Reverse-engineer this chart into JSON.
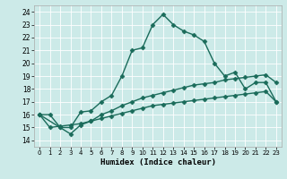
{
  "title": "",
  "xlabel": "Humidex (Indice chaleur)",
  "background_color": "#cceae8",
  "grid_color": "#ffffff",
  "line_color": "#1a6b5a",
  "xlim": [
    -0.5,
    23.5
  ],
  "ylim": [
    13.5,
    24.5
  ],
  "yticks": [
    14,
    15,
    16,
    17,
    18,
    19,
    20,
    21,
    22,
    23,
    24
  ],
  "xticks": [
    0,
    1,
    2,
    3,
    4,
    5,
    6,
    7,
    8,
    9,
    10,
    11,
    12,
    13,
    14,
    15,
    16,
    17,
    18,
    19,
    20,
    21,
    22,
    23
  ],
  "series": [
    {
      "x": [
        0,
        1,
        2,
        3,
        4,
        5,
        6,
        7,
        8,
        9,
        10,
        11,
        12,
        13,
        14,
        15,
        16,
        17,
        18,
        19,
        20,
        21,
        22,
        23
      ],
      "y": [
        16.0,
        16.0,
        15.0,
        15.0,
        16.2,
        16.3,
        17.0,
        17.5,
        19.0,
        21.0,
        21.2,
        23.0,
        23.8,
        23.0,
        22.5,
        22.2,
        21.7,
        20.0,
        19.0,
        19.3,
        18.0,
        18.5,
        18.5,
        17.0
      ],
      "marker": "D",
      "markersize": 2.5,
      "linewidth": 1.0
    },
    {
      "x": [
        0,
        2,
        3,
        4,
        5,
        6,
        7,
        8,
        9,
        10,
        11,
        12,
        13,
        14,
        15,
        16,
        17,
        18,
        19,
        20,
        21,
        22,
        23
      ],
      "y": [
        16.0,
        15.0,
        14.5,
        15.2,
        15.5,
        16.0,
        16.3,
        16.7,
        17.0,
        17.3,
        17.5,
        17.7,
        17.9,
        18.1,
        18.3,
        18.4,
        18.5,
        18.7,
        18.8,
        18.9,
        19.0,
        19.1,
        18.5
      ],
      "marker": "D",
      "markersize": 2.5,
      "linewidth": 1.0
    },
    {
      "x": [
        0,
        1,
        2,
        3,
        4,
        5,
        6,
        7,
        8,
        9,
        10,
        11,
        12,
        13,
        14,
        15,
        16,
        17,
        18,
        19,
        20,
        21,
        22,
        23
      ],
      "y": [
        16.0,
        15.0,
        15.1,
        15.2,
        15.3,
        15.5,
        15.7,
        15.9,
        16.1,
        16.3,
        16.5,
        16.7,
        16.8,
        16.9,
        17.0,
        17.1,
        17.2,
        17.3,
        17.4,
        17.5,
        17.6,
        17.7,
        17.8,
        17.0
      ],
      "marker": "D",
      "markersize": 2.5,
      "linewidth": 1.0
    }
  ]
}
